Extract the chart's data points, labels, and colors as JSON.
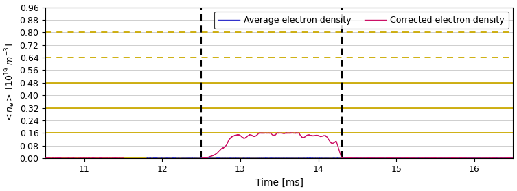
{
  "xlim": [
    10.5,
    16.5
  ],
  "ylim": [
    0.0,
    0.96
  ],
  "yticks": [
    0.0,
    0.08,
    0.16,
    0.24,
    0.32,
    0.4,
    0.48,
    0.56,
    0.64,
    0.72,
    0.8,
    0.88,
    0.96
  ],
  "xticks": [
    11,
    12,
    13,
    14,
    15,
    16
  ],
  "xlabel": "Time [ms]",
  "ylabel": "$< n_e >$ [$10^{19}$ $m^{-3}$]",
  "hlines_solid": [
    0.0,
    0.16,
    0.32,
    0.48
  ],
  "hlines_dashed": [
    0.64,
    0.8
  ],
  "hlines_color": "#ccaa00",
  "vlines": [
    12.5,
    14.3
  ],
  "vlines_color": "black",
  "legend_labels": [
    "Average electron density",
    "Corrected electron density"
  ],
  "avg_color": "#3333cc",
  "corr_color": "#cc1166",
  "grid_color": "#bbbbbb",
  "background_color": "#ffffff",
  "figsize": [
    7.53,
    2.79
  ],
  "dpi": 100
}
